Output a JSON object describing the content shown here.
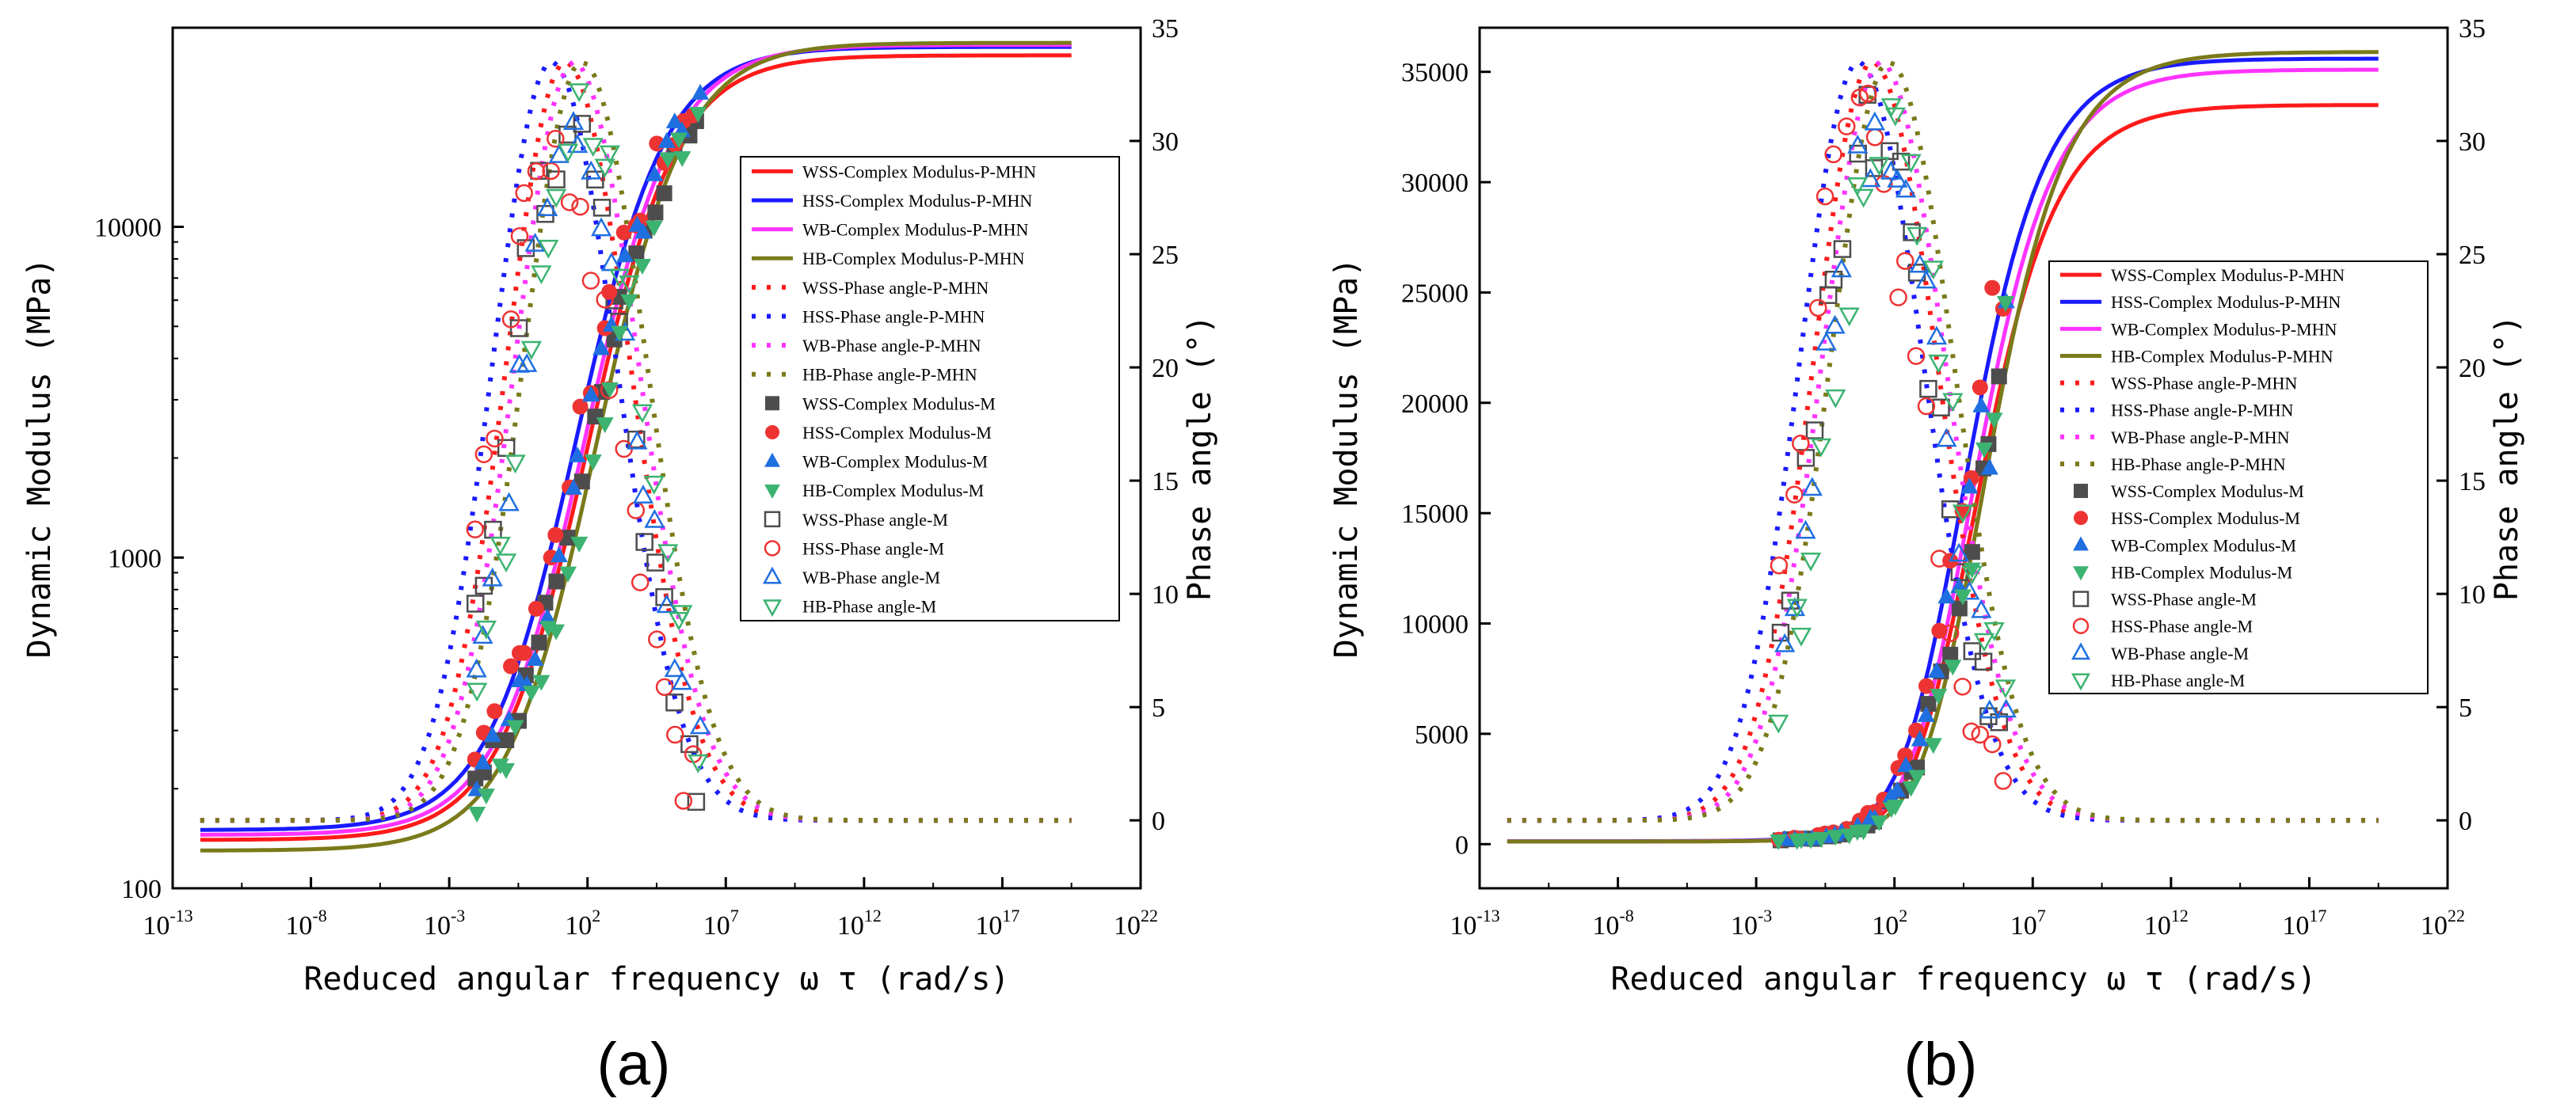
{
  "panels": [
    {
      "label": "(a)"
    },
    {
      "label": "(b)"
    }
  ],
  "chart_data": [
    {
      "type": "scatter",
      "panel": "(a)",
      "title": "",
      "xlabel": "Reduced angular frequency ω τ (rad/s)",
      "ylabel": "Dynamic Modulus (MPa)",
      "y2label": "Phase angle (°)",
      "xscale": "log",
      "xlim_exp": [
        -13,
        22
      ],
      "yscale": "log",
      "ylim": [
        100,
        40000
      ],
      "y2lim": [
        -3,
        35
      ],
      "x_ticks": [
        "10",
        "10",
        "10",
        "10",
        "10",
        "10",
        "10",
        "10"
      ],
      "x_tick_exps": [
        "-13",
        "-8",
        "-3",
        "2",
        "7",
        "12",
        "17",
        "22"
      ],
      "y_ticks": [
        "100",
        "1000",
        "10000"
      ],
      "y2_ticks": [
        "0",
        "5",
        "10",
        "15",
        "20",
        "25",
        "30",
        "35"
      ],
      "legend_position": "center-right",
      "complex_modulus_P_MHN": [
        {
          "name": "WSS-Complex Modulus-P-MHN",
          "min": 140,
          "max": 33000
        },
        {
          "name": "HSS-Complex Modulus-P-MHN",
          "min": 150,
          "max": 35000
        },
        {
          "name": "WB-Complex Modulus-P-MHN",
          "min": 145,
          "max": 35500
        },
        {
          "name": "HB-Complex Modulus-P-MHN",
          "min": 130,
          "max": 36000
        }
      ],
      "phase_angle_P_MHN_peak": {
        "x_exp": 1.2,
        "value": 33.5
      },
      "legend": [
        "WSS-Complex Modulus-P-MHN",
        "HSS-Complex Modulus-P-MHN",
        "WB-Complex Modulus-P-MHN",
        "HB-Complex Modulus-P-MHN",
        "WSS-Phase angle-P-MHN",
        "HSS-Phase angle-P-MHN",
        "WB-Phase angle-P-MHN",
        "HB-Phase angle-P-MHN",
        "WSS-Complex Modulus-M",
        "HSS-Complex Modulus-M",
        "WB-Complex Modulus-M",
        "HB-Complex Modulus-M",
        "WSS-Phase angle-M",
        "HSS-Phase angle-M",
        "WB-Phase angle-M",
        "HB-Phase angle-M"
      ]
    },
    {
      "type": "scatter",
      "panel": "(b)",
      "title": "",
      "xlabel": "Reduced angular frequency ω τ (rad/s)",
      "ylabel": "Dynamic Modulus (MPa)",
      "y2label": "Phase angle (°)",
      "xscale": "log",
      "xlim_exp": [
        -13,
        22
      ],
      "yscale": "linear",
      "ylim": [
        -2000,
        37000
      ],
      "y2lim": [
        -3,
        35
      ],
      "x_ticks": [
        "10",
        "10",
        "10",
        "10",
        "10",
        "10",
        "10",
        "10"
      ],
      "x_tick_exps": [
        "-13",
        "-8",
        "-3",
        "2",
        "7",
        "12",
        "17",
        "22"
      ],
      "y_ticks": [
        "0",
        "5000",
        "10000",
        "15000",
        "20000",
        "25000",
        "30000",
        "35000"
      ],
      "y2_ticks": [
        "0",
        "5",
        "10",
        "15",
        "20",
        "25",
        "30",
        "35"
      ],
      "legend_position": "center-right",
      "complex_modulus_P_MHN": [
        {
          "name": "WSS-Complex Modulus-P-MHN",
          "min": 120,
          "max": 33500
        },
        {
          "name": "HSS-Complex Modulus-P-MHN",
          "min": 130,
          "max": 35600
        },
        {
          "name": "WB-Complex Modulus-P-MHN",
          "min": 125,
          "max": 35100
        },
        {
          "name": "HB-Complex Modulus-P-MHN",
          "min": 120,
          "max": 35900
        }
      ],
      "phase_angle_P_MHN_peak": {
        "x_exp": 1.2,
        "value": 33.5
      },
      "legend": [
        "WSS-Complex Modulus-P-MHN",
        "HSS-Complex Modulus-P-MHN",
        "WB-Complex Modulus-P-MHN",
        "HB-Complex Modulus-P-MHN",
        "WSS-Phase angle-P-MHN",
        "HSS-Phase angle-P-MHN",
        "WB-Phase angle-P-MHN",
        "HB-Phase angle-P-MHN",
        "WSS-Complex Modulus-M",
        "HSS-Complex Modulus-M",
        "WB-Complex Modulus-M",
        "HB-Complex Modulus-M",
        "WSS-Phase angle-M",
        "HSS-Phase angle-M",
        "WB-Phase angle-M",
        "HB-Phase angle-M"
      ]
    }
  ],
  "series_colors": {
    "WSS": "#ff1a1a",
    "HSS": "#1a1aff",
    "WB": "#ff33ff",
    "HB": "#7a7a1a",
    "WSS_marker": "#4d4d4d",
    "HSS_marker": "#ee3333",
    "WB_marker": "#1f6fe0",
    "HB_marker": "#3cb371"
  }
}
